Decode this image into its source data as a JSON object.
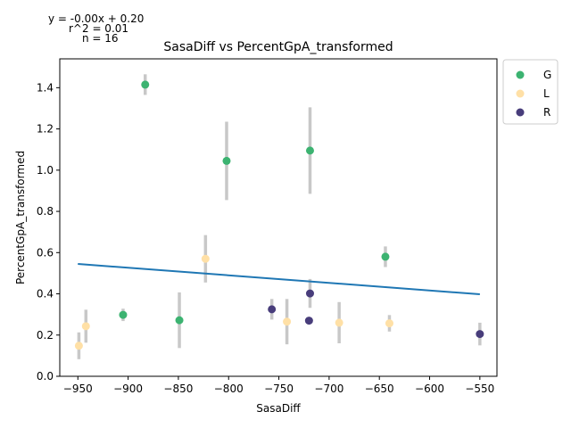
{
  "chart_data": {
    "type": "scatter",
    "title": "SasaDiff vs PercentGpA_transformed",
    "xlabel": "SasaDiff",
    "ylabel": "PercentGpA_transformed",
    "xlim": [
      -968,
      -533
    ],
    "ylim": [
      0,
      1.54
    ],
    "xticks": [
      -950,
      -900,
      -850,
      -800,
      -750,
      -700,
      -650,
      -600,
      -550
    ],
    "yticks": [
      0.0,
      0.2,
      0.4,
      0.6,
      0.8,
      1.0,
      1.2,
      1.4
    ],
    "xtick_labels": [
      "−950",
      "−900",
      "−850",
      "−800",
      "−750",
      "−700",
      "−650",
      "−600",
      "−550"
    ],
    "ytick_labels": [
      "0.0",
      "0.2",
      "0.4",
      "0.6",
      "0.8",
      "1.0",
      "1.2",
      "1.4"
    ],
    "grid": false,
    "legend_position": "outside-top-right",
    "annotations": [
      "y = -0.00x + 0.20",
      "r^2 = 0.01",
      "n = 16"
    ],
    "fit_line": {
      "x": [
        -950,
        -550
      ],
      "y": [
        0.545,
        0.398
      ],
      "color": "#1f77b4"
    },
    "series": [
      {
        "name": "G",
        "color": "#3cb371",
        "points": [
          {
            "x": -883,
            "y": 1.415,
            "err": 0.05
          },
          {
            "x": -802,
            "y": 1.045,
            "err": 0.19
          },
          {
            "x": -719,
            "y": 1.095,
            "err": 0.21
          },
          {
            "x": -644,
            "y": 0.58,
            "err": 0.05
          },
          {
            "x": -905,
            "y": 0.298,
            "err": 0.03
          },
          {
            "x": -849,
            "y": 0.272,
            "err": 0.135
          }
        ]
      },
      {
        "name": "L",
        "color": "#ffe0a6",
        "points": [
          {
            "x": -949,
            "y": 0.148,
            "err": 0.065
          },
          {
            "x": -942,
            "y": 0.243,
            "err": 0.08
          },
          {
            "x": -823,
            "y": 0.57,
            "err": 0.115
          },
          {
            "x": -742,
            "y": 0.265,
            "err": 0.11
          },
          {
            "x": -690,
            "y": 0.26,
            "err": 0.1
          },
          {
            "x": -640,
            "y": 0.257,
            "err": 0.04
          }
        ]
      },
      {
        "name": "R",
        "color": "#483d7b",
        "points": [
          {
            "x": -757,
            "y": 0.325,
            "err": 0.05
          },
          {
            "x": -720,
            "y": 0.27,
            "err": 0.01
          },
          {
            "x": -719,
            "y": 0.402,
            "err": 0.07
          },
          {
            "x": -550,
            "y": 0.205,
            "err": 0.055
          }
        ]
      }
    ]
  }
}
